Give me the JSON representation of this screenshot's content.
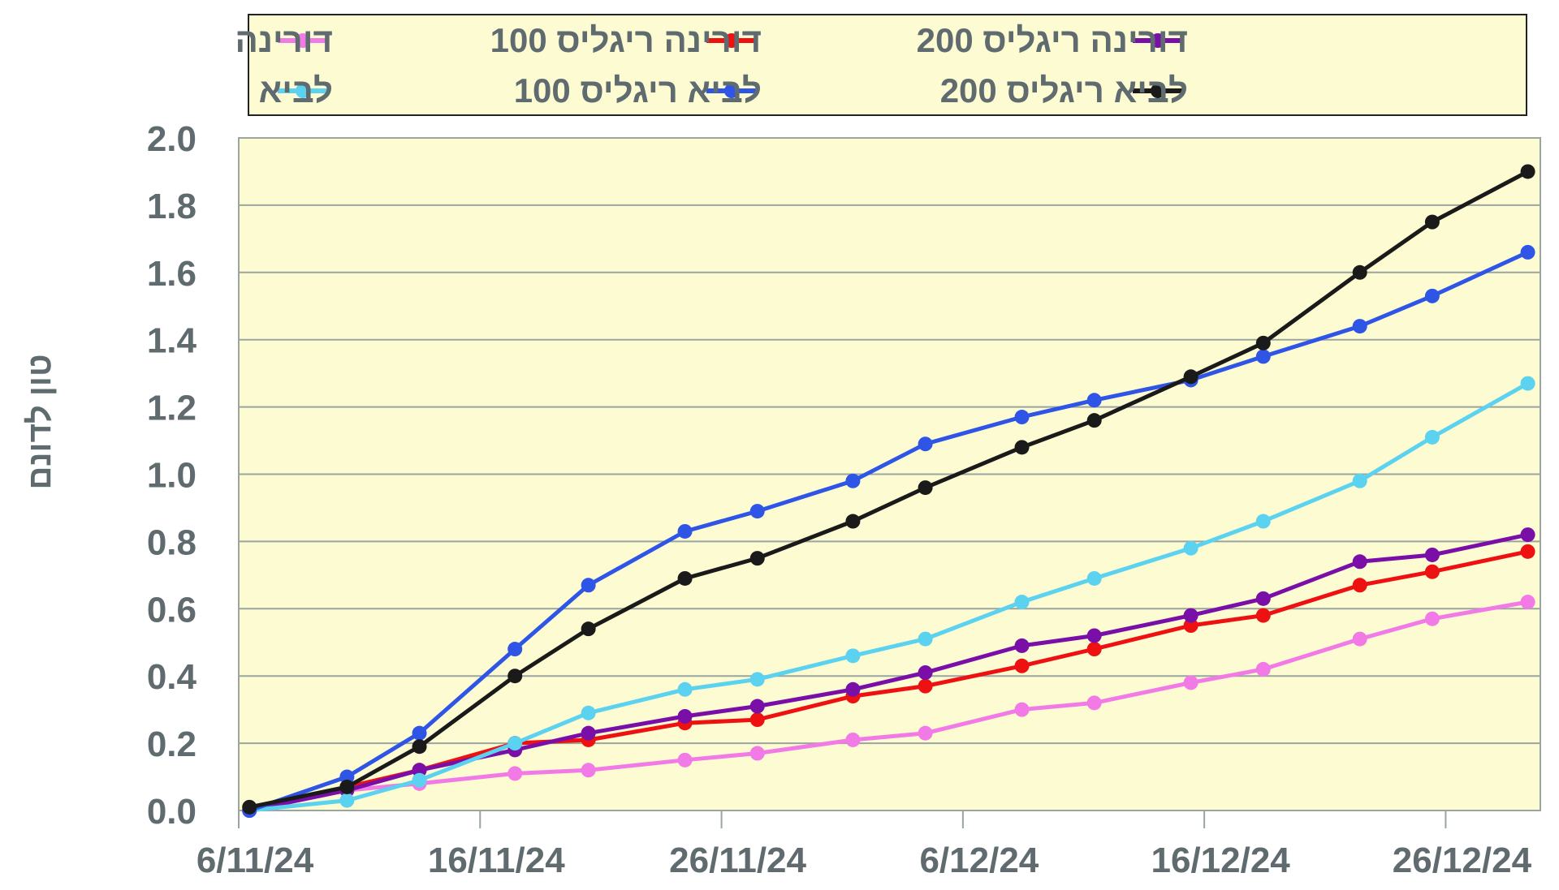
{
  "chart_data": {
    "type": "line",
    "title": "",
    "xlabel": "",
    "ylabel": "טון לדונם",
    "ylim": [
      0,
      2.0
    ],
    "yticks": [
      "0.0",
      "0.2",
      "0.4",
      "0.6",
      "0.8",
      "1.0",
      "1.2",
      "1.4",
      "1.6",
      "1.8",
      "2.0"
    ],
    "xticks": [
      "6/11/24",
      "16/11/24",
      "26/11/24",
      "6/12/24",
      "16/12/24",
      "26/12/24"
    ],
    "grid": true,
    "legend_position": "top",
    "x": [
      "6/11/24",
      "10/11/24",
      "13/11/24",
      "17/11/24",
      "20/11/24",
      "24/11/24",
      "27/11/24",
      "1/12/24",
      "4/12/24",
      "8/12/24",
      "11/12/24",
      "15/12/24",
      "18/12/24",
      "22/12/24",
      "25/12/24",
      "29/12/24"
    ],
    "series": [
      {
        "name": "דורינה",
        "color": "#f27ae6",
        "values": [
          0.0,
          0.06,
          0.08,
          0.11,
          0.12,
          0.15,
          0.17,
          0.21,
          0.23,
          0.3,
          0.32,
          0.38,
          0.42,
          0.51,
          0.57,
          0.62
        ]
      },
      {
        "name": "דורינה ריגליס 100",
        "color": "#ee1111",
        "values": [
          0.0,
          0.07,
          0.12,
          0.2,
          0.21,
          0.26,
          0.27,
          0.34,
          0.37,
          0.43,
          0.48,
          0.55,
          0.58,
          0.67,
          0.71,
          0.77
        ]
      },
      {
        "name": "דורינה ריגליס 200",
        "color": "#7a0fa8",
        "values": [
          0.0,
          0.06,
          0.12,
          0.18,
          0.23,
          0.28,
          0.31,
          0.36,
          0.41,
          0.49,
          0.52,
          0.58,
          0.63,
          0.74,
          0.76,
          0.82
        ]
      },
      {
        "name": "לביא",
        "color": "#5ad2f0",
        "values": [
          0.0,
          0.03,
          0.09,
          0.2,
          0.29,
          0.36,
          0.39,
          0.46,
          0.51,
          0.62,
          0.69,
          0.78,
          0.86,
          0.98,
          1.11,
          1.27
        ]
      },
      {
        "name": "לביא ריגליס 100",
        "color": "#2f55e6",
        "values": [
          0.0,
          0.1,
          0.23,
          0.48,
          0.67,
          0.83,
          0.89,
          0.98,
          1.09,
          1.17,
          1.22,
          1.28,
          1.35,
          1.44,
          1.53,
          1.66
        ]
      },
      {
        "name": "לביא ריגליס 200",
        "color": "#1a1a1a",
        "values": [
          0.01,
          0.07,
          0.19,
          0.4,
          0.54,
          0.69,
          0.75,
          0.86,
          0.96,
          1.08,
          1.16,
          1.29,
          1.39,
          1.6,
          1.75,
          1.9
        ]
      }
    ]
  },
  "legend": [
    {
      "label": "דורינה",
      "color": "#f27ae6"
    },
    {
      "label": "דורינה ריגליס 100",
      "color": "#ee1111"
    },
    {
      "label": "דורינה ריגליס 200",
      "color": "#7a0fa8"
    },
    {
      "label": "לביא",
      "color": "#5ad2f0"
    },
    {
      "label": "לביא ריגליס 100",
      "color": "#2f55e6"
    },
    {
      "label": "לביא ריגליס 200",
      "color": "#1a1a1a"
    }
  ]
}
